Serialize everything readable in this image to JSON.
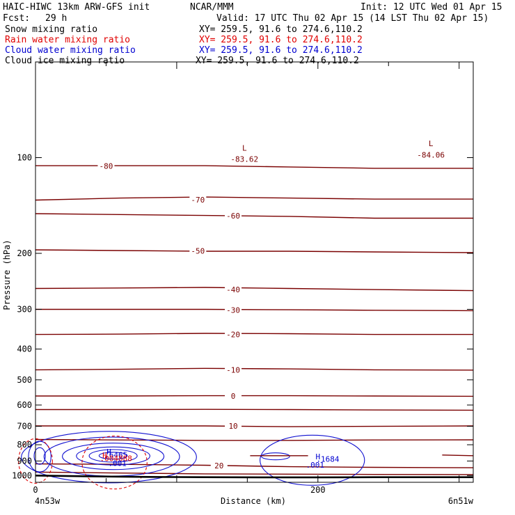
{
  "header": {
    "model": "HAIC-HIWC 13km ARW-GFS init",
    "org": "NCAR/MMM",
    "init": "Init: 12 UTC Wed 01 Apr 15",
    "fcst_label": "Fcst:",
    "fcst_value": "29 h",
    "valid": "Valid: 17 UTC Thu 02 Apr 15 (14 LST Thu 02 Apr 15)"
  },
  "legend": [
    {
      "label": "Snow mixing ratio",
      "xy": "XY= 259.5, 91.6 to 274.6,110.2",
      "color": "#000000"
    },
    {
      "label": "Rain water mixing ratio",
      "xy": "XY= 259.5, 91.6 to 274.6,110.2",
      "color": "#e00000"
    },
    {
      "label": "Cloud water mixing ratio",
      "xy": "XY= 259.5, 91.6 to 274.6,110.2",
      "color": "#0000d0"
    },
    {
      "label": "Cloud ice mixing ratio",
      "xy": "XY= 259.5, 91.6 to 274.6,110.2",
      "color": "#000000"
    }
  ],
  "colors": {
    "temperature": "#7a0000",
    "rain": "#e00000",
    "cloud_water": "#1010d0",
    "frame": "#000000"
  },
  "chart_data": {
    "type": "line",
    "xlabel": "Distance (km)",
    "ylabel": "Pressure (hPa)",
    "xlim": [
      0,
      310
    ],
    "ylim": [
      1050,
      50
    ],
    "y_scale": "log",
    "x_ticks": [
      0,
      200
    ],
    "y_ticks": [
      100,
      200,
      300,
      400,
      500,
      600,
      700,
      800,
      900,
      1000
    ],
    "x_end_labels": {
      "left": "4n53w",
      "right": "6n51w"
    },
    "temperature_contours": [
      {
        "label": "-80",
        "x": [
          0,
          60,
          120,
          180,
          240,
          310
        ],
        "p": [
          106,
          106,
          106,
          107,
          108,
          108
        ]
      },
      {
        "label": "-70",
        "x": [
          0,
          60,
          120,
          180,
          240,
          310
        ],
        "p": [
          136,
          134,
          133,
          134,
          135,
          135
        ]
      },
      {
        "label": "-60",
        "x": [
          0,
          60,
          120,
          180,
          240,
          310
        ],
        "p": [
          150,
          151,
          152,
          153,
          155,
          155
        ]
      },
      {
        "label": "-50",
        "x": [
          0,
          60,
          120,
          180,
          240,
          310
        ],
        "p": [
          195,
          196,
          197,
          197,
          198,
          199
        ]
      },
      {
        "label": "-40",
        "x": [
          0,
          60,
          120,
          180,
          240,
          310
        ],
        "p": [
          258,
          257,
          256,
          258,
          260,
          262
        ]
      },
      {
        "label": "-30",
        "x": [
          0,
          60,
          120,
          180,
          240,
          310
        ],
        "p": [
          300,
          300,
          300,
          301,
          302,
          303
        ]
      },
      {
        "label": "-20",
        "x": [
          0,
          60,
          120,
          180,
          240,
          310
        ],
        "p": [
          360,
          359,
          357,
          358,
          360,
          360
        ]
      },
      {
        "label": "-10",
        "x": [
          0,
          60,
          120,
          180,
          240,
          310
        ],
        "p": [
          465,
          463,
          460,
          462,
          465,
          466
        ]
      },
      {
        "label": "0",
        "x": [
          0,
          60,
          120,
          180,
          240,
          310
        ],
        "p": [
          562,
          562,
          561,
          561,
          562,
          563
        ]
      },
      {
        "label": "10",
        "x": [
          0,
          60,
          120,
          180,
          240,
          310
        ],
        "p": [
          698,
          698,
          698,
          702,
          700,
          698
        ]
      },
      {
        "label": "20",
        "x": [
          0,
          60,
          120,
          180,
          240,
          310
        ],
        "p": [
          919,
          922,
          928,
          938,
          942,
          945
        ]
      },
      {
        "label": "",
        "x": [
          0,
          60,
          120,
          180,
          240,
          310
        ],
        "p": [
          620,
          620,
          619,
          620,
          622,
          623
        ]
      },
      {
        "label": "",
        "x": [
          0,
          60,
          120,
          180,
          240,
          310
        ],
        "p": [
          770,
          773,
          775,
          775,
          773,
          772
        ]
      },
      {
        "label": "",
        "x": [
          0,
          60,
          120,
          180,
          240,
          310
        ],
        "p": [
          975,
          982,
          988,
          990,
          992,
          993
        ]
      }
    ],
    "surface": {
      "x": [
        0,
        40,
        80,
        120,
        160,
        200,
        240,
        310
      ],
      "p": [
        1000,
        1006,
        1010,
        1012,
        1013,
        1013,
        1012,
        1012
      ]
    },
    "annotations": [
      {
        "text": "L",
        "x": 148,
        "p": 95,
        "color": "#7a0000"
      },
      {
        "text": "-83.62",
        "x": 148,
        "p": 103,
        "color": "#7a0000"
      },
      {
        "text": "L",
        "x": 280,
        "p": 92,
        "color": "#7a0000"
      },
      {
        "text": "-84.06",
        "x": 280,
        "p": 100,
        "color": "#7a0000"
      },
      {
        "text": "H",
        "x": 52,
        "p": 858,
        "color": "#0000d0"
      },
      {
        "text": ".6465",
        "x": 57,
        "p": 878,
        "color": "#0000d0"
      },
      {
        "text": "H",
        "x": 49,
        "p": 880,
        "color": "#e00000"
      },
      {
        "text": ".004888",
        "x": 57,
        "p": 900,
        "color": "#e00000"
      },
      {
        "text": ".001",
        "x": 58,
        "p": 932,
        "color": "#0000d0"
      },
      {
        "text": "H",
        "x": 200,
        "p": 888,
        "color": "#0000d0"
      },
      {
        "text": ".1684",
        "x": 207,
        "p": 906,
        "color": "#0000d0"
      },
      {
        "text": ".001",
        "x": 198,
        "p": 945,
        "color": "#0000d0"
      }
    ]
  }
}
